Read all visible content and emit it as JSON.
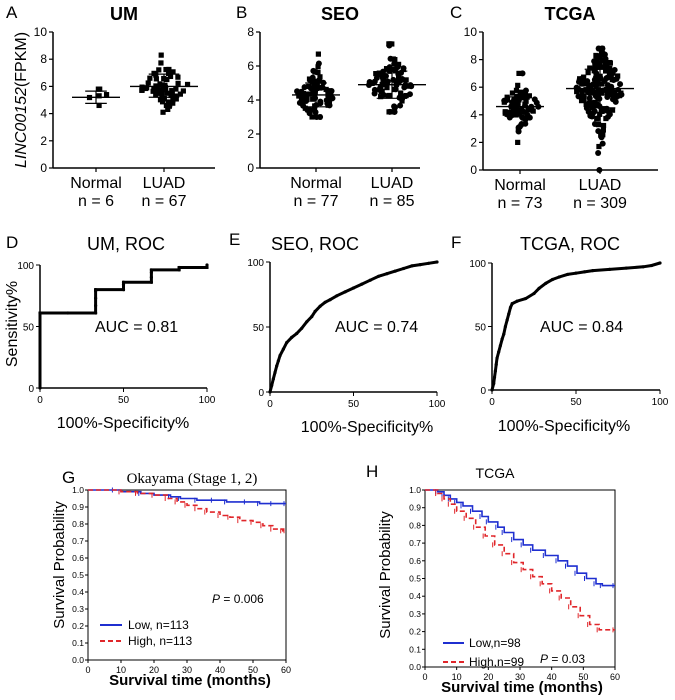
{
  "y_label_scatter": {
    "gene": "LINC00152",
    "unit": "(FPKM)"
  },
  "y_label_roc": "Sensitivity%",
  "chart_data": [
    {
      "id": "A",
      "type": "scatter",
      "title": "UM",
      "ylim": [
        0,
        10
      ],
      "yticks": [
        0,
        2,
        4,
        6,
        8,
        10
      ],
      "groups": [
        {
          "name": "Normal",
          "n_label": "n = 6",
          "n": 6,
          "mean": 5.2,
          "sd": 0.45,
          "min": 4.6,
          "max": 5.8,
          "summary": {
            "mean": 5.2,
            "low": 4.75,
            "high": 5.65
          }
        },
        {
          "name": "LUAD",
          "n_label": "n = 67",
          "n": 67,
          "mean": 6.0,
          "sd": 0.85,
          "min": 4.1,
          "max": 8.3,
          "summary": {
            "mean": 6.0,
            "low": 5.2,
            "high": 6.9
          }
        }
      ]
    },
    {
      "id": "B",
      "type": "scatter",
      "title": "SEO",
      "ylim": [
        0,
        8
      ],
      "yticks": [
        0,
        2,
        4,
        6,
        8
      ],
      "groups": [
        {
          "name": "Normal",
          "n_label": "n = 77",
          "n": 77,
          "mean": 4.3,
          "sd": 0.7,
          "min": 3.0,
          "max": 6.7,
          "summary": {
            "mean": 4.3,
            "low": 3.6,
            "high": 5.0
          }
        },
        {
          "name": "LUAD",
          "n_label": "n = 85",
          "n": 85,
          "mean": 4.9,
          "sd": 0.8,
          "min": 3.3,
          "max": 7.3,
          "summary": {
            "mean": 4.9,
            "low": 4.1,
            "high": 5.7
          }
        }
      ]
    },
    {
      "id": "C",
      "type": "scatter",
      "title": "TCGA",
      "ylim": [
        0,
        10
      ],
      "yticks": [
        0,
        2,
        4,
        6,
        8,
        10
      ],
      "groups": [
        {
          "name": "Normal",
          "n_label": "n = 73",
          "n": 73,
          "mean": 4.6,
          "sd": 0.75,
          "min": 2.0,
          "max": 7.0,
          "summary": {
            "mean": 4.6,
            "low": 3.9,
            "high": 5.3
          }
        },
        {
          "name": "LUAD",
          "n_label": "n = 309",
          "n": 309,
          "mean": 5.9,
          "sd": 1.4,
          "min": 0.0,
          "max": 8.8,
          "summary": {
            "mean": 5.9,
            "low": 4.5,
            "high": 7.3
          }
        }
      ]
    },
    {
      "id": "D",
      "type": "line",
      "title": "UM, ROC",
      "xlabel": "100%-Specificity%",
      "auc_label": "AUC = 0.81",
      "xlim": [
        0,
        100
      ],
      "ylim": [
        0,
        100
      ],
      "xticks": [
        0,
        50,
        100
      ],
      "yticks": [
        0,
        50,
        100
      ],
      "curve": [
        [
          0,
          0
        ],
        [
          0,
          61
        ],
        [
          16.7,
          61
        ],
        [
          33.3,
          61
        ],
        [
          33.3,
          67
        ],
        [
          33.3,
          73
        ],
        [
          33.3,
          79
        ],
        [
          33.3,
          80
        ],
        [
          50,
          80
        ],
        [
          50,
          84
        ],
        [
          50,
          86
        ],
        [
          66.7,
          86
        ],
        [
          66.7,
          90
        ],
        [
          66.7,
          94
        ],
        [
          66.7,
          96
        ],
        [
          83.3,
          96
        ],
        [
          83.3,
          98
        ],
        [
          100,
          98
        ],
        [
          100,
          100
        ]
      ]
    },
    {
      "id": "E",
      "type": "line",
      "title": "SEO, ROC",
      "xlabel": "100%-Specificity%",
      "auc_label": "AUC = 0.74",
      "xlim": [
        0,
        100
      ],
      "ylim": [
        0,
        100
      ],
      "xticks": [
        0,
        50,
        100
      ],
      "yticks": [
        0,
        50,
        100
      ],
      "curve": [
        [
          0,
          0
        ],
        [
          1,
          5
        ],
        [
          2,
          10
        ],
        [
          3,
          15
        ],
        [
          4,
          20
        ],
        [
          5,
          24
        ],
        [
          6,
          28
        ],
        [
          8,
          33
        ],
        [
          10,
          38
        ],
        [
          13,
          42
        ],
        [
          16,
          45
        ],
        [
          19,
          49
        ],
        [
          22,
          54
        ],
        [
          25,
          58
        ],
        [
          27,
          62
        ],
        [
          30,
          66
        ],
        [
          33,
          69
        ],
        [
          36,
          71
        ],
        [
          40,
          74
        ],
        [
          45,
          77
        ],
        [
          50,
          80
        ],
        [
          55,
          83
        ],
        [
          60,
          86
        ],
        [
          65,
          89
        ],
        [
          70,
          91
        ],
        [
          75,
          93
        ],
        [
          80,
          95
        ],
        [
          85,
          97
        ],
        [
          90,
          98
        ],
        [
          95,
          99
        ],
        [
          100,
          100
        ]
      ]
    },
    {
      "id": "F",
      "type": "line",
      "title": "TCGA, ROC",
      "xlabel": "100%-Specificity%",
      "auc_label": "AUC = 0.84",
      "xlim": [
        0,
        100
      ],
      "ylim": [
        0,
        100
      ],
      "xticks": [
        0,
        50,
        100
      ],
      "yticks": [
        0,
        50,
        100
      ],
      "curve": [
        [
          0,
          0
        ],
        [
          1,
          5
        ],
        [
          1.5,
          10
        ],
        [
          2,
          15
        ],
        [
          2.5,
          20
        ],
        [
          3,
          25
        ],
        [
          4,
          30
        ],
        [
          5,
          35
        ],
        [
          6,
          40
        ],
        [
          7,
          44
        ],
        [
          8,
          50
        ],
        [
          9,
          55
        ],
        [
          10,
          60
        ],
        [
          11,
          65
        ],
        [
          12,
          68
        ],
        [
          15,
          70
        ],
        [
          20,
          72
        ],
        [
          25,
          76
        ],
        [
          28,
          80
        ],
        [
          32,
          84
        ],
        [
          36,
          87
        ],
        [
          40,
          89
        ],
        [
          45,
          91
        ],
        [
          50,
          92
        ],
        [
          55,
          93
        ],
        [
          60,
          94
        ],
        [
          70,
          95
        ],
        [
          80,
          96
        ],
        [
          90,
          97
        ],
        [
          95,
          98
        ],
        [
          100,
          100
        ]
      ]
    },
    {
      "id": "G",
      "type": "line",
      "title": "Okayama (Stage 1, 2)",
      "xlabel": "Survival time (months)",
      "ylabel": "Survival Probability",
      "xlim": [
        0,
        60
      ],
      "ylim": [
        0,
        1.0
      ],
      "xticks": [
        0,
        10,
        20,
        30,
        40,
        50,
        60
      ],
      "yticks": [
        "0.0",
        "0.1",
        "0.2",
        "0.3",
        "0.4",
        "0.5",
        "0.6",
        "0.7",
        "0.8",
        "0.9",
        "1.0"
      ],
      "p_label": "P",
      "p_value": " = 0.006",
      "series": [
        {
          "name": "Low, n=113",
          "color": "#1f2fd0",
          "dashed": false,
          "points": [
            [
              0,
              1.0
            ],
            [
              8,
              1.0
            ],
            [
              10,
              0.99
            ],
            [
              16,
              0.98
            ],
            [
              20,
              0.97
            ],
            [
              25,
              0.96
            ],
            [
              28,
              0.95
            ],
            [
              33,
              0.94
            ],
            [
              38,
              0.94
            ],
            [
              42,
              0.93
            ],
            [
              48,
              0.93
            ],
            [
              52,
              0.92
            ],
            [
              56,
              0.92
            ],
            [
              60,
              0.92
            ]
          ]
        },
        {
          "name": "High, n=113",
          "color": "#e0262a",
          "dashed": true,
          "points": [
            [
              0,
              1.0
            ],
            [
              10,
              0.99
            ],
            [
              15,
              0.98
            ],
            [
              20,
              0.97
            ],
            [
              24,
              0.95
            ],
            [
              27,
              0.93
            ],
            [
              30,
              0.91
            ],
            [
              33,
              0.89
            ],
            [
              36,
              0.87
            ],
            [
              40,
              0.85
            ],
            [
              43,
              0.84
            ],
            [
              46,
              0.82
            ],
            [
              50,
              0.81
            ],
            [
              53,
              0.79
            ],
            [
              56,
              0.77
            ],
            [
              59,
              0.76
            ],
            [
              60,
              0.76
            ]
          ]
        }
      ]
    },
    {
      "id": "H",
      "type": "line",
      "title": "TCGA",
      "xlabel": "Survival time (months)",
      "ylabel": "Survival Probability",
      "xlim": [
        0,
        60
      ],
      "ylim": [
        0,
        1.0
      ],
      "xticks": [
        0,
        10,
        20,
        30,
        40,
        50,
        60
      ],
      "yticks": [
        "0.0",
        "0.1",
        "0.2",
        "0.3",
        "0.4",
        "0.5",
        "0.6",
        "0.7",
        "0.8",
        "0.9",
        "1.0"
      ],
      "p_label": "P",
      "p_value": " = 0.03",
      "series": [
        {
          "name": "Low,n=98",
          "color": "#1f2fd0",
          "dashed": false,
          "points": [
            [
              0,
              1.0
            ],
            [
              4,
              0.99
            ],
            [
              6,
              0.97
            ],
            [
              8,
              0.95
            ],
            [
              10,
              0.93
            ],
            [
              12,
              0.91
            ],
            [
              15,
              0.88
            ],
            [
              18,
              0.85
            ],
            [
              20,
              0.82
            ],
            [
              23,
              0.79
            ],
            [
              25,
              0.76
            ],
            [
              28,
              0.72
            ],
            [
              31,
              0.69
            ],
            [
              34,
              0.66
            ],
            [
              38,
              0.63
            ],
            [
              42,
              0.6
            ],
            [
              45,
              0.57
            ],
            [
              48,
              0.53
            ],
            [
              51,
              0.5
            ],
            [
              54,
              0.47
            ],
            [
              56,
              0.46
            ],
            [
              60,
              0.46
            ]
          ]
        },
        {
          "name": "High,n=99",
          "color": "#e0262a",
          "dashed": true,
          "points": [
            [
              0,
              1.0
            ],
            [
              4,
              0.98
            ],
            [
              6,
              0.95
            ],
            [
              8,
              0.92
            ],
            [
              10,
              0.88
            ],
            [
              13,
              0.84
            ],
            [
              16,
              0.79
            ],
            [
              19,
              0.74
            ],
            [
              22,
              0.69
            ],
            [
              25,
              0.64
            ],
            [
              28,
              0.59
            ],
            [
              31,
              0.55
            ],
            [
              34,
              0.51
            ],
            [
              37,
              0.47
            ],
            [
              40,
              0.43
            ],
            [
              43,
              0.39
            ],
            [
              46,
              0.34
            ],
            [
              49,
              0.29
            ],
            [
              52,
              0.24
            ],
            [
              55,
              0.21
            ],
            [
              60,
              0.21
            ]
          ]
        }
      ]
    }
  ]
}
